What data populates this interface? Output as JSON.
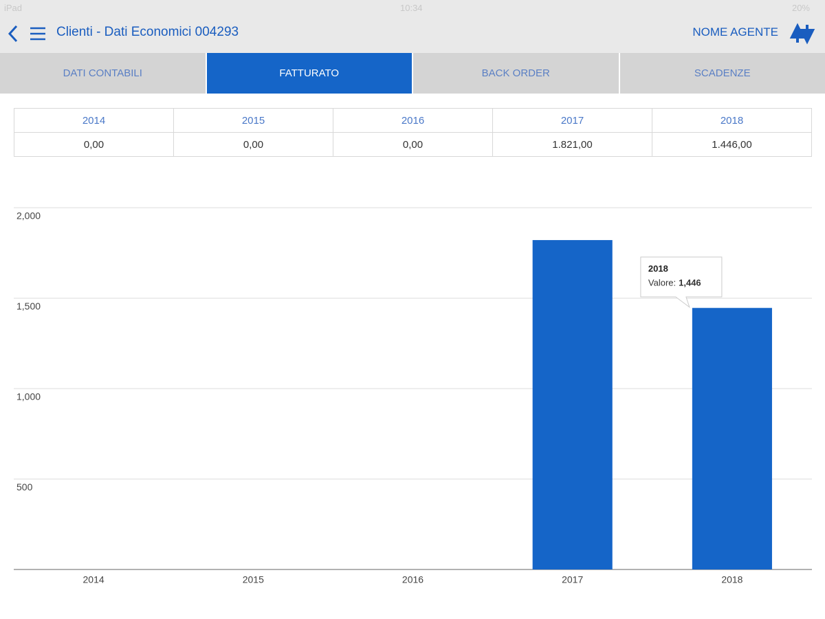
{
  "status_bar": {
    "device": "iPad",
    "time": "10:34",
    "battery": "20%"
  },
  "nav_bar": {
    "title": "Clienti - Dati Economici 004293",
    "agent": "NOME AGENTE"
  },
  "tabs": [
    "DATI CONTABILI",
    "FATTURATO",
    "BACK ORDER",
    "SCADENZE"
  ],
  "table": {
    "header": [
      "2014",
      "2015",
      "2016",
      "2017",
      "2018"
    ],
    "rows": [
      [
        "0,00",
        "0,00",
        "0,00",
        "1.821,00",
        "1.446,00"
      ]
    ]
  },
  "chart_data": {
    "type": "bar",
    "categories": [
      "2014",
      "2015",
      "2016",
      "2017",
      "2018"
    ],
    "values": [
      0,
      0,
      0,
      1821,
      1446
    ],
    "color": "#1565c8",
    "ylim": [
      0,
      2000
    ],
    "yticks": [
      500,
      {
        "value": 1000,
        "label": "1,000"
      },
      {
        "value": 1500,
        "label": "1,500"
      },
      {
        "value": 2000,
        "label": "2,000"
      }
    ],
    "grid": true,
    "tooltip": {
      "title": "2018",
      "label": "Valore:",
      "value_label": "1,446"
    }
  }
}
